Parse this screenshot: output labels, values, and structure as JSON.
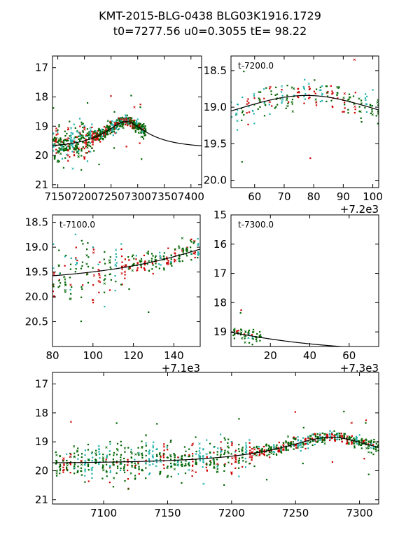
{
  "title": {
    "line1": "KMT-2015-BLG-0438 BLG03K1916.1729",
    "line2": "t0=7277.56 u0=0.3055 tE=  98.22"
  },
  "model": {
    "t0": 7277.56,
    "u0": 0.3055,
    "tE": 98.22,
    "baseline_mag": 19.75,
    "source_frac": 0.55
  },
  "colors": {
    "green": "#006400",
    "red": "#cc0000",
    "cyan": "#20b2aa",
    "model": "#000000",
    "axis": "#000000"
  },
  "chart_data": [
    {
      "type": "scatter",
      "panel": "a",
      "xlim": [
        7140,
        7420
      ],
      "ylim": [
        21.1,
        16.6
      ],
      "xticks": [
        7150,
        7200,
        7250,
        7300,
        7350,
        7400
      ],
      "yticks": [
        17,
        18,
        19,
        20,
        21
      ],
      "xtick_labels": [
        "7150",
        "7200",
        "7250",
        "7300",
        "7350",
        "7400"
      ],
      "ytick_labels": [
        "17",
        "18",
        "19",
        "20",
        "21"
      ],
      "offset_label": "",
      "annotation": "",
      "data_xmax": 7315
    },
    {
      "type": "scatter",
      "panel": "b",
      "xlim": [
        7252,
        7302
      ],
      "ylim": [
        20.1,
        18.3
      ],
      "xticks": [
        7260,
        7270,
        7280,
        7290,
        7300
      ],
      "yticks": [
        18.5,
        19.0,
        19.5,
        20.0
      ],
      "xtick_labels": [
        "60",
        "70",
        "80",
        "90",
        "100"
      ],
      "ytick_labels": [
        "18.5",
        "19.0",
        "19.5",
        "20.0"
      ],
      "offset_label": "+7.2e3",
      "annotation": "t-7200.0",
      "data_xmax": 7302
    },
    {
      "type": "scatter",
      "panel": "c",
      "xlim": [
        7180,
        7253
      ],
      "ylim": [
        21.0,
        18.35
      ],
      "xticks": [
        7180,
        7200,
        7220,
        7240
      ],
      "yticks": [
        18.5,
        19.0,
        19.5,
        20.0,
        20.5
      ],
      "xtick_labels": [
        "80",
        "100",
        "120",
        "140"
      ],
      "ytick_labels": [
        "18.5",
        "19.0",
        "19.5",
        "20.0",
        "20.5"
      ],
      "offset_label": "+7.1e3",
      "annotation": "t-7100.0",
      "data_xmax": 7253
    },
    {
      "type": "scatter",
      "panel": "d",
      "xlim": [
        7300,
        7375
      ],
      "ylim": [
        19.5,
        15.0
      ],
      "xticks": [
        7320,
        7340,
        7360
      ],
      "yticks": [
        15,
        16,
        17,
        18,
        19
      ],
      "xtick_labels": [
        "20",
        "40",
        "60"
      ],
      "ytick_labels": [
        "15",
        "16",
        "17",
        "18",
        "19"
      ],
      "offset_label": "+7.3e3",
      "annotation": "t-7300.0",
      "data_xmax": 7315
    },
    {
      "type": "scatter",
      "panel": "e",
      "xlim": [
        7060,
        7315
      ],
      "ylim": [
        21.15,
        16.6
      ],
      "xticks": [
        7100,
        7150,
        7200,
        7250,
        7300
      ],
      "yticks": [
        17,
        18,
        19,
        20,
        21
      ],
      "xtick_labels": [
        "7100",
        "7150",
        "7200",
        "7250",
        "7300"
      ],
      "ytick_labels": [
        "17",
        "18",
        "19",
        "20",
        "21"
      ],
      "offset_label": "",
      "annotation": "",
      "data_xmax": 7315
    }
  ]
}
